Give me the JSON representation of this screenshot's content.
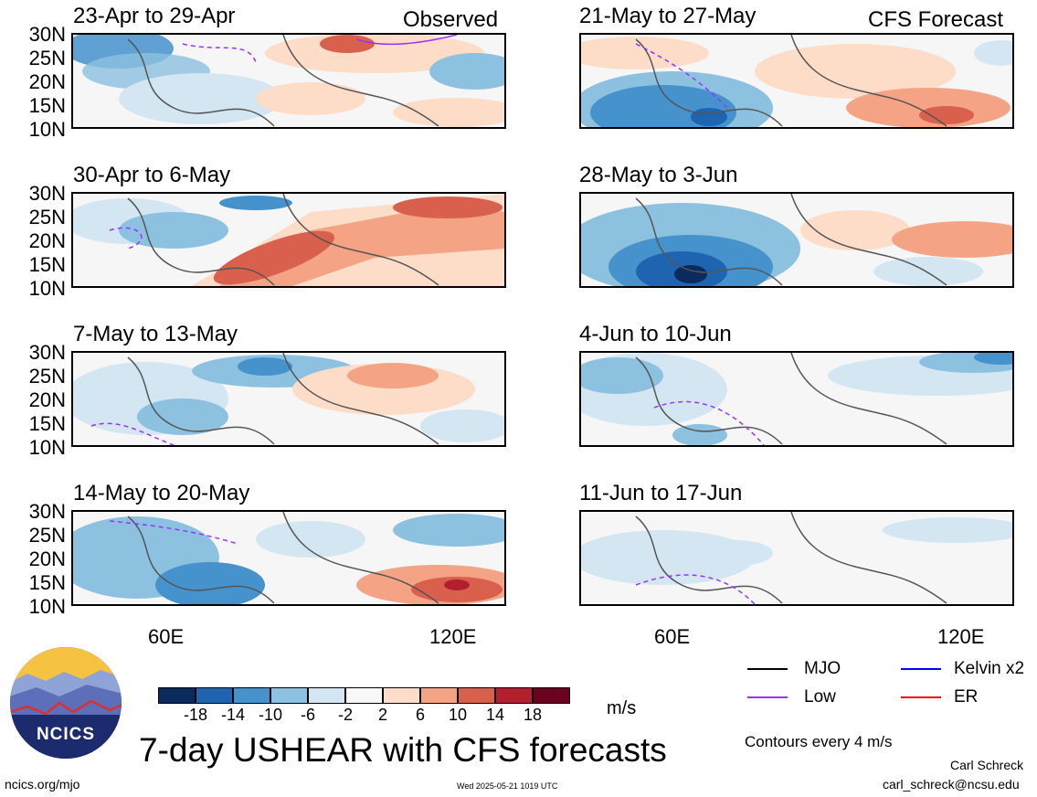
{
  "panels_left": [
    {
      "title": "23-Apr to 29-Apr",
      "tag": "Observed"
    },
    {
      "title": "30-Apr to 6-May",
      "tag": ""
    },
    {
      "title": "7-May to 13-May",
      "tag": ""
    },
    {
      "title": "14-May to 20-May",
      "tag": ""
    }
  ],
  "panels_right": [
    {
      "title": "21-May to 27-May",
      "tag": "CFS Forecast"
    },
    {
      "title": "28-May to 3-Jun",
      "tag": ""
    },
    {
      "title": "4-Jun to 10-Jun",
      "tag": ""
    },
    {
      "title": "11-Jun to 17-Jun",
      "tag": ""
    }
  ],
  "lat_labels": [
    "30N",
    "25N",
    "20N",
    "15N",
    "10N"
  ],
  "lon_labels": [
    "60E",
    "120E"
  ],
  "colorbar": {
    "ticks": [
      "-18",
      "-14",
      "-10",
      "-6",
      "-2",
      "2",
      "6",
      "10",
      "14",
      "18"
    ],
    "colors": [
      "#0a2b5c",
      "#1f64b0",
      "#4592cc",
      "#8cc1e0",
      "#d3e6f2",
      "#f8f8f8",
      "#fddcc8",
      "#f4a384",
      "#d9604c",
      "#b2202e",
      "#6a0220"
    ],
    "units": "m/s"
  },
  "legend": {
    "items": [
      {
        "label": "MJO",
        "color": "#000000"
      },
      {
        "label": "Kelvin x2",
        "color": "#0000ff"
      },
      {
        "label": "Low",
        "color": "#9933ff"
      },
      {
        "label": "ER",
        "color": "#ff0000"
      }
    ],
    "contours_note": "Contours every 4 m/s"
  },
  "logo_text": "NCICS",
  "main_title": "7-day USHEAR with CFS forecasts",
  "footer": {
    "left": "ncics.org/mjo",
    "center": "Wed 2025-05-21 1019 UTC",
    "author": "Carl Schreck",
    "email": "carl_schreck@ncsu.edu"
  }
}
